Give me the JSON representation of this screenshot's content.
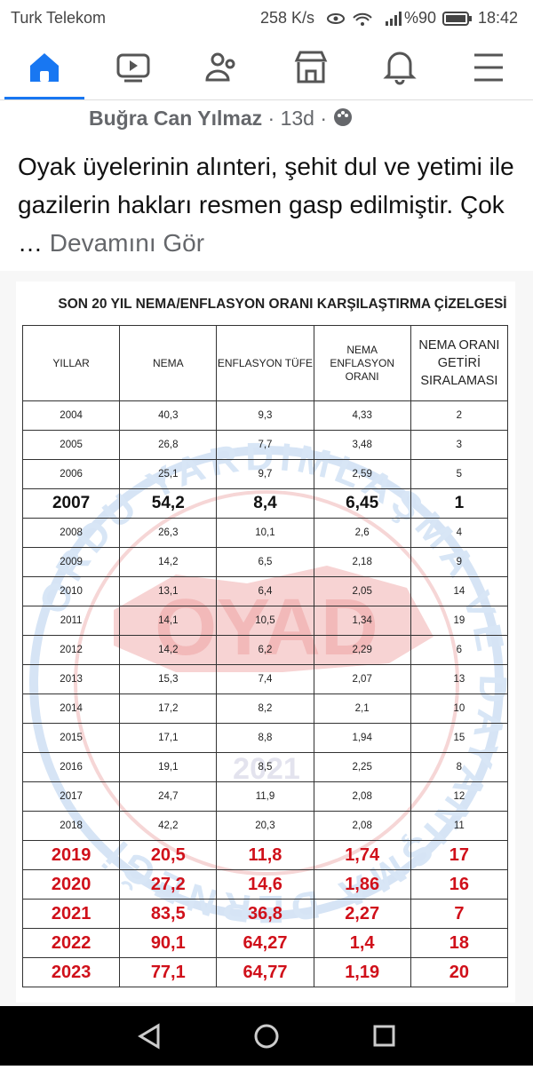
{
  "status_bar": {
    "carrier": "Turk Telekom",
    "speed": "258 K/s",
    "battery": "%90",
    "time": "18:42"
  },
  "post": {
    "author": "Buğra Can Yılmaz",
    "age": "· 13d ·",
    "text": "Oyak üyelerinin alınteri, şehit dul ve yetimi ile gazilerin hakları resmen gasp edilmiştir. Çok …",
    "see_more": "Devamını Gör"
  },
  "image": {
    "title": "SON 20 YIL NEMA/ENFLASYON ORANI KARŞILAŞTIRMA ÇİZELGESİ",
    "watermark": {
      "ring": "ORDU YARDIMLAŞMA VE DAYANIŞMA DERNEĞİ",
      "logo": "OYAD",
      "year": "2021"
    },
    "table": {
      "header": [
        "YILLAR",
        "NEMA",
        "ENFLASYON TÜFE",
        "NEMA ENFLASYON ORANI",
        "NEMA ORANI GETİRİ SIRALAMASI"
      ],
      "rows": [
        [
          "2004",
          "40,3",
          "9,3",
          "4,33",
          "2"
        ],
        [
          "2005",
          "26,8",
          "7,7",
          "3,48",
          "3"
        ],
        [
          "2006",
          "25,1",
          "9,7",
          "2,59",
          "5"
        ],
        [
          "2007",
          "54,2",
          "8,4",
          "6,45",
          "1"
        ],
        [
          "2008",
          "26,3",
          "10,1",
          "2,6",
          "4"
        ],
        [
          "2009",
          "14,2",
          "6,5",
          "2,18",
          "9"
        ],
        [
          "2010",
          "13,1",
          "6,4",
          "2,05",
          "14"
        ],
        [
          "2011",
          "14,1",
          "10,5",
          "1,34",
          "19"
        ],
        [
          "2012",
          "14,2",
          "6,2",
          "2,29",
          "6"
        ],
        [
          "2013",
          "15,3",
          "7,4",
          "2,07",
          "13"
        ],
        [
          "2014",
          "17,2",
          "8,2",
          "2,1",
          "10"
        ],
        [
          "2015",
          "17,1",
          "8,8",
          "1,94",
          "15"
        ],
        [
          "2016",
          "19,1",
          "8,5",
          "2,25",
          "8"
        ],
        [
          "2017",
          "24,7",
          "11,9",
          "2,08",
          "12"
        ],
        [
          "2018",
          "42,2",
          "20,3",
          "2,08",
          "11"
        ],
        [
          "2019",
          "20,5",
          "11,8",
          "1,74",
          "17"
        ],
        [
          "2020",
          "27,2",
          "14,6",
          "1,86",
          "16"
        ],
        [
          "2021",
          "83,5",
          "36,8",
          "2,27",
          "7"
        ],
        [
          "2022",
          "90,1",
          "64,27",
          "1,4",
          "18"
        ],
        [
          "2023",
          "77,1",
          "64,77",
          "1,19",
          "20"
        ]
      ]
    }
  }
}
